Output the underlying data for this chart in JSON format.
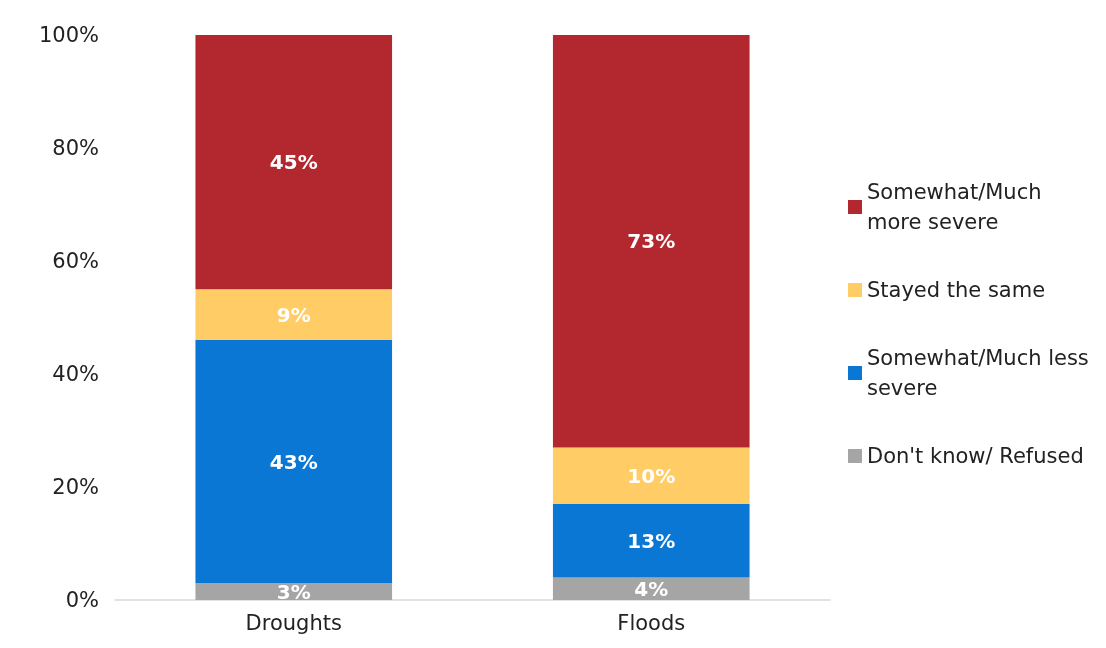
{
  "chart_data": {
    "type": "bar",
    "stacked": true,
    "categories": [
      "Droughts",
      "Floods"
    ],
    "series": [
      {
        "name": "Don't know/ Refused",
        "color": "#a5a5a5",
        "values": [
          3,
          4
        ],
        "value_labels": [
          "3%",
          "4%"
        ]
      },
      {
        "name": "Somewhat/Much less severe",
        "color": "#0a77d5",
        "values": [
          43,
          13
        ],
        "value_labels": [
          "43%",
          "13%"
        ]
      },
      {
        "name": "Stayed the same",
        "color": "#ffcc66",
        "values": [
          9,
          10
        ],
        "value_labels": [
          "9%",
          "10%"
        ]
      },
      {
        "name": "Somewhat/Much more severe",
        "color": "#b2282e",
        "values": [
          45,
          73
        ],
        "value_labels": [
          "45%",
          "73%"
        ]
      }
    ],
    "ylim": [
      0,
      100
    ],
    "yticks": [
      {
        "value": 0,
        "label": "0%"
      },
      {
        "value": 20,
        "label": "20%"
      },
      {
        "value": 40,
        "label": "40%"
      },
      {
        "value": 60,
        "label": "60%"
      },
      {
        "value": 80,
        "label": "80%"
      },
      {
        "value": 100,
        "label": "100%"
      }
    ],
    "grid": false,
    "legend": "right"
  }
}
